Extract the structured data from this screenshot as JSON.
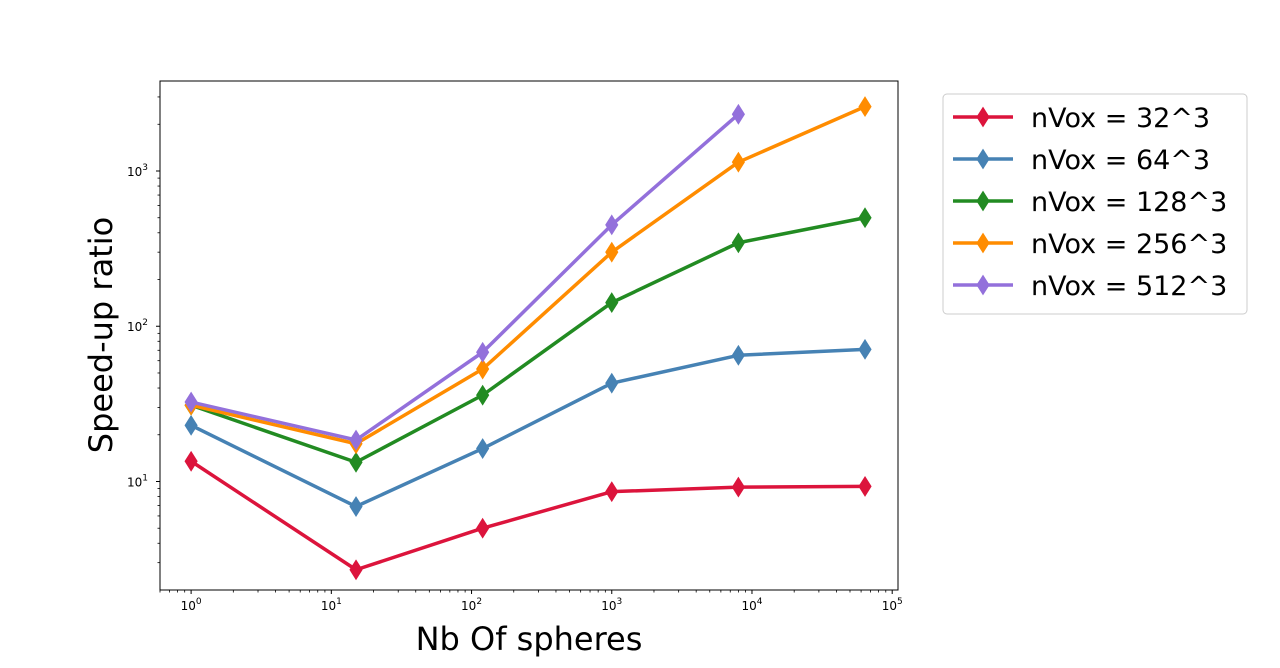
{
  "chart_data": {
    "type": "line",
    "title": "",
    "xlabel": "Nb Of spheres",
    "ylabel": "Speed-up ratio",
    "xscale": "log",
    "yscale": "log",
    "xlim": [
      0.6,
      110000
    ],
    "ylim": [
      2,
      3800
    ],
    "x_ticks": [
      {
        "base": "10",
        "exp": "0",
        "value": 1
      },
      {
        "base": "10",
        "exp": "1",
        "value": 10
      },
      {
        "base": "10",
        "exp": "2",
        "value": 100
      },
      {
        "base": "10",
        "exp": "3",
        "value": 1000
      },
      {
        "base": "10",
        "exp": "4",
        "value": 10000
      },
      {
        "base": "10",
        "exp": "5",
        "value": 100000
      }
    ],
    "y_ticks": [
      {
        "base": "10",
        "exp": "1",
        "value": 10
      },
      {
        "base": "10",
        "exp": "2",
        "value": 100
      },
      {
        "base": "10",
        "exp": "3",
        "value": 1000
      }
    ],
    "grid": false,
    "legend_position": "outside-right-top",
    "marker": "thin-diamond",
    "x": [
      1,
      15,
      120,
      1000,
      8000,
      64000
    ],
    "series": [
      {
        "name": "nVox = 32^3",
        "color": "#dc143c",
        "values": [
          13.5,
          2.7,
          5.0,
          8.6,
          9.2,
          9.3
        ]
      },
      {
        "name": "nVox = 64^3",
        "color": "#4682b4",
        "values": [
          23,
          6.9,
          16.3,
          43,
          65,
          71
        ]
      },
      {
        "name": "nVox = 128^3",
        "color": "#228b22",
        "values": [
          31,
          13.3,
          36,
          142,
          345,
          500
        ]
      },
      {
        "name": "nVox = 256^3",
        "color": "#ff8c00",
        "values": [
          31,
          17.5,
          53,
          300,
          1140,
          2600
        ]
      },
      {
        "name": "nVox = 512^3",
        "color": "#9370db",
        "values": [
          32.5,
          18.5,
          68,
          450,
          2320,
          null
        ]
      }
    ]
  }
}
